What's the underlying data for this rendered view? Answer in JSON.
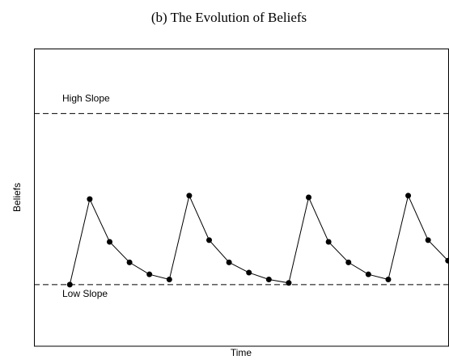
{
  "chart_data": {
    "type": "line",
    "title": "(b) The Evolution of Beliefs",
    "x_label": "Time",
    "y_label": "Beliefs",
    "x": [
      1,
      2,
      3,
      4,
      5,
      6,
      7,
      8,
      9,
      10,
      11,
      12,
      13,
      14,
      15,
      16,
      17,
      18,
      19,
      20
    ],
    "series": [
      {
        "color": "#000000",
        "values": [
          0,
          0.5,
          0.25,
          0.13,
          0.06,
          0.03,
          0.52,
          0.26,
          0.13,
          0.07,
          0.03,
          0.01,
          0.51,
          0.25,
          0.13,
          0.06,
          0.03,
          0.52,
          0.26,
          0.14
        ]
      }
    ],
    "reference_lines": [
      {
        "label": "High Slope",
        "value": 1
      },
      {
        "label": "Low Slope",
        "value": 0
      }
    ],
    "xlim": [
      -0.8,
      20.05
    ],
    "ylim": [
      -0.36,
      1.38
    ]
  }
}
